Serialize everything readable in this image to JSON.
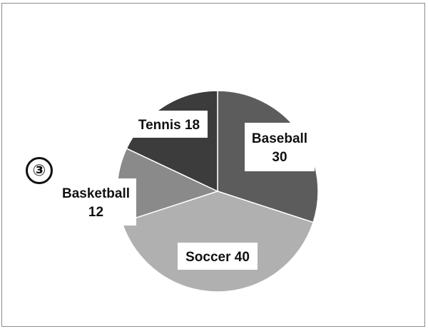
{
  "marker": "③",
  "chart_data": {
    "type": "pie",
    "title": "",
    "start_angle_deg": 0,
    "direction": "clockwise",
    "slices": [
      {
        "name": "Baseball",
        "value": 30,
        "color": "#5c5c5c",
        "label_line1": "Baseball",
        "label_line2": "30"
      },
      {
        "name": "Soccer",
        "value": 40,
        "color": "#b0b0b0",
        "label_line1": "Soccer 40",
        "label_line2": ""
      },
      {
        "name": "Basketball",
        "value": 12,
        "color": "#8a8a8a",
        "label_line1": "Basketball",
        "label_line2": "12"
      },
      {
        "name": "Tennis",
        "value": 18,
        "color": "#3c3c3c",
        "label_line1": "Tennis 18",
        "label_line2": ""
      }
    ],
    "legend": "none",
    "data_labels": "on slices",
    "slice_border_color": "#ffffff"
  }
}
